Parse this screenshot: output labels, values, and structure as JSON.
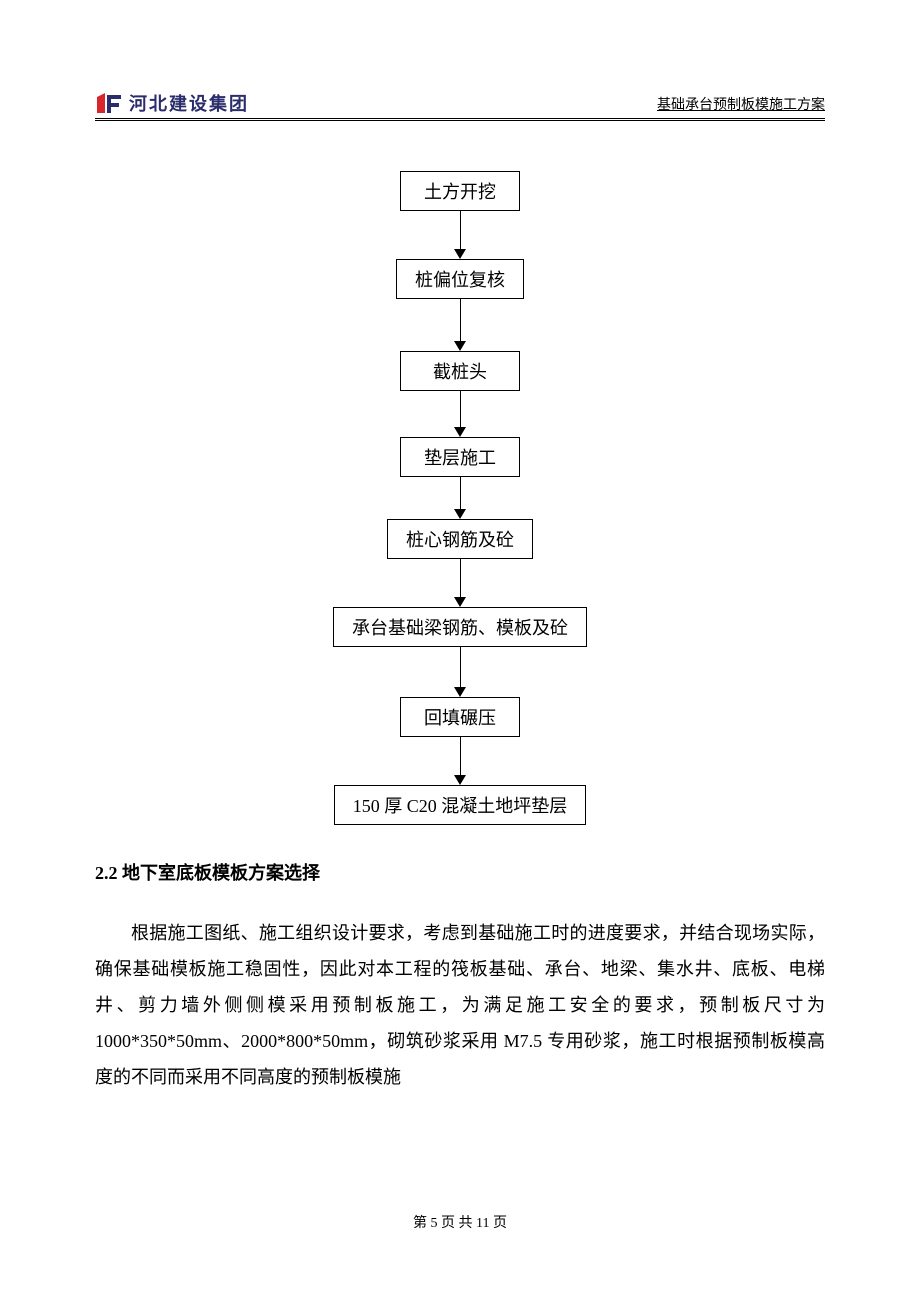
{
  "header": {
    "logo_text": "河北建设集团",
    "logo_colors": {
      "red": "#d9262c",
      "blue": "#2b2c6b"
    },
    "subtitle": "基础承台预制板模施工方案"
  },
  "flowchart": {
    "type": "flowchart",
    "direction": "vertical",
    "node_border_color": "#000000",
    "node_background": "#ffffff",
    "node_fontsize": 18,
    "arrow_color": "#000000",
    "arrow_lengths": [
      48,
      52,
      46,
      42,
      48,
      50,
      48
    ],
    "nodes": [
      {
        "label": "土方开挖"
      },
      {
        "label": "桩偏位复核"
      },
      {
        "label": "截桩头"
      },
      {
        "label": "垫层施工"
      },
      {
        "label": "桩心钢筋及砼"
      },
      {
        "label": "承台基础梁钢筋、模板及砼"
      },
      {
        "label": "回填碾压"
      },
      {
        "label": "150 厚 C20 混凝土地坪垫层"
      }
    ]
  },
  "section": {
    "heading": "2.2 地下室底板模板方案选择",
    "paragraph": "根据施工图纸、施工组织设计要求，考虑到基础施工时的进度要求，并结合现场实际，确保基础模板施工稳固性，因此对本工程的筏板基础、承台、地梁、集水井、底板、电梯井、剪力墙外侧侧模采用预制板施工，为满足施工安全的要求，预制板尺寸为 1000*350*50mm、2000*800*50mm，砌筑砂浆采用 M7.5 专用砂浆，施工时根据预制板模高度的不同而采用不同高度的预制板模施"
  },
  "footer": {
    "text": "第 5 页 共 11 页"
  }
}
